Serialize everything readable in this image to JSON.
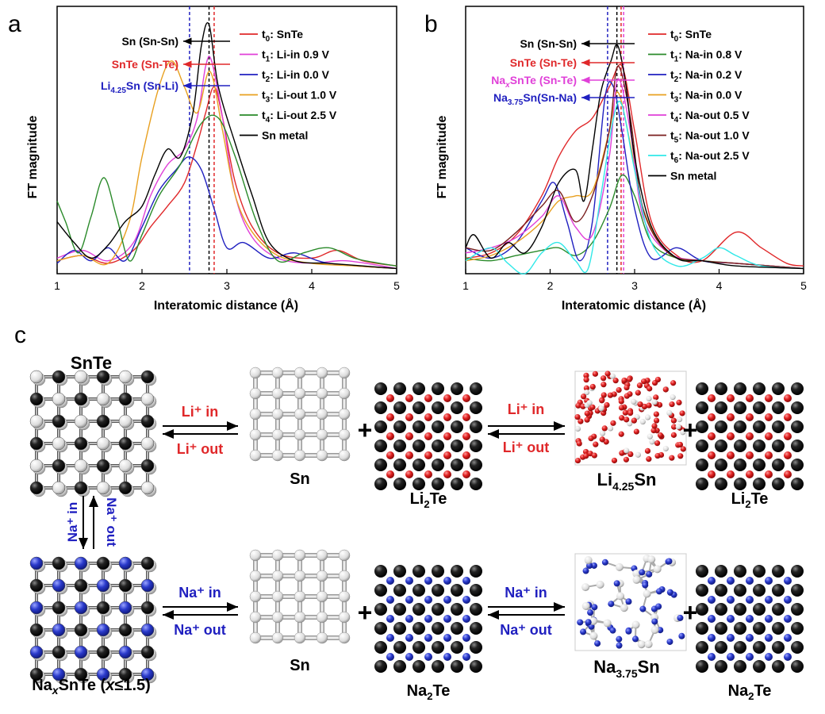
{
  "panel_labels": {
    "a": "a",
    "b": "b",
    "c": "c"
  },
  "colors": {
    "red": "#e0282a",
    "magenta": "#e040d8",
    "blue": "#2020c0",
    "orange": "#e8a020",
    "green": "#2a8a2a",
    "black": "#000000",
    "brown": "#7a1f1f",
    "cyan": "#30e8e8",
    "na_atom": "#2a3acb",
    "li_atom": "#e02020"
  },
  "chart_data": [
    {
      "type": "line",
      "xlabel": "Interatomic distance (Å)",
      "ylabel": "FT magnitude",
      "xlim": [
        1,
        5
      ],
      "xticks": [
        1,
        2,
        3,
        4,
        5
      ],
      "ylim": [
        0,
        1
      ],
      "ref_lines": [
        {
          "x": 2.56,
          "color": "#2020c0"
        },
        {
          "x": 2.79,
          "color": "#000000"
        },
        {
          "x": 2.85,
          "color": "#e0282a"
        }
      ],
      "annotations": [
        {
          "text": "Sn (Sn-Sn)",
          "color": "#000000"
        },
        {
          "text": "SnTe (Sn-Te)",
          "color": "#e0282a"
        },
        {
          "text": "Li4.25Sn (Sn-Li)",
          "main": "Li",
          "sub": "4.25",
          "rest": "Sn (Sn-Li)",
          "color": "#2020c0"
        }
      ],
      "legend": [
        {
          "t": "t",
          "sub": "0",
          "rest": ": SnTe",
          "color": "#e0282a"
        },
        {
          "t": "t",
          "sub": "1",
          "rest": ": Li-in 0.9 V",
          "color": "#e040d8"
        },
        {
          "t": "t",
          "sub": "2",
          "rest": ": Li-in 0.0 V",
          "color": "#2020c0"
        },
        {
          "t": "t",
          "sub": "3",
          "rest": ": Li-out 1.0 V",
          "color": "#e8a020"
        },
        {
          "t": "t",
          "sub": "4",
          "rest": ": Li-out 2.5 V",
          "color": "#2a8a2a"
        },
        {
          "t": "",
          "sub": "",
          "rest": "Sn metal",
          "color": "#000000"
        }
      ],
      "series": [
        {
          "color": "#e0282a",
          "x": [
            1,
            1.3,
            1.6,
            1.9,
            2.1,
            2.3,
            2.5,
            2.65,
            2.75,
            2.85,
            2.95,
            3.1,
            3.3,
            3.6,
            4.0,
            4.3,
            4.6,
            5.0
          ],
          "y": [
            0.05,
            0.07,
            0.04,
            0.09,
            0.18,
            0.26,
            0.35,
            0.5,
            0.62,
            0.72,
            0.6,
            0.35,
            0.18,
            0.08,
            0.06,
            0.09,
            0.05,
            0.03
          ]
        },
        {
          "color": "#e040d8",
          "x": [
            1,
            1.3,
            1.6,
            1.9,
            2.1,
            2.3,
            2.5,
            2.65,
            2.75,
            2.82,
            2.95,
            3.1,
            3.3,
            3.6,
            4.0,
            4.4,
            5.0
          ],
          "y": [
            0.06,
            0.09,
            0.05,
            0.12,
            0.3,
            0.42,
            0.48,
            0.6,
            0.8,
            0.82,
            0.6,
            0.3,
            0.14,
            0.06,
            0.04,
            0.05,
            0.02
          ]
        },
        {
          "color": "#2020c0",
          "x": [
            1,
            1.2,
            1.4,
            1.6,
            1.8,
            2.0,
            2.2,
            2.4,
            2.55,
            2.7,
            2.85,
            3.0,
            3.2,
            3.5,
            3.8,
            4.2,
            5.0
          ],
          "y": [
            0.04,
            0.09,
            0.05,
            0.1,
            0.05,
            0.18,
            0.32,
            0.4,
            0.45,
            0.4,
            0.25,
            0.1,
            0.12,
            0.06,
            0.08,
            0.04,
            0.02
          ]
        },
        {
          "color": "#e8a020",
          "x": [
            1,
            1.3,
            1.6,
            1.85,
            2.0,
            2.2,
            2.35,
            2.5,
            2.65,
            2.8,
            2.95,
            3.1,
            3.3,
            3.6,
            4.0,
            4.5,
            5.0
          ],
          "y": [
            0.05,
            0.07,
            0.04,
            0.2,
            0.45,
            0.72,
            0.82,
            0.72,
            0.62,
            0.78,
            0.55,
            0.3,
            0.16,
            0.07,
            0.04,
            0.03,
            0.02
          ]
        },
        {
          "color": "#2a8a2a",
          "x": [
            1,
            1.1,
            1.25,
            1.4,
            1.55,
            1.7,
            1.85,
            2.0,
            2.2,
            2.45,
            2.7,
            2.9,
            3.1,
            3.35,
            3.6,
            3.9,
            4.2,
            4.5,
            4.8,
            5.0
          ],
          "y": [
            0.28,
            0.2,
            0.08,
            0.22,
            0.37,
            0.22,
            0.05,
            0.15,
            0.3,
            0.42,
            0.58,
            0.6,
            0.45,
            0.2,
            0.05,
            0.08,
            0.1,
            0.06,
            0.04,
            0.03
          ]
        },
        {
          "color": "#000000",
          "x": [
            1,
            1.2,
            1.4,
            1.6,
            1.8,
            2.0,
            2.15,
            2.3,
            2.45,
            2.6,
            2.7,
            2.79,
            2.9,
            3.1,
            3.3,
            3.5,
            3.8,
            4.2,
            4.6,
            5.0
          ],
          "y": [
            0.2,
            0.12,
            0.06,
            0.11,
            0.2,
            0.26,
            0.38,
            0.48,
            0.45,
            0.62,
            0.88,
            0.96,
            0.72,
            0.5,
            0.3,
            0.12,
            0.05,
            0.04,
            0.03,
            0.02
          ]
        }
      ]
    },
    {
      "type": "line",
      "xlabel": "Interatomic distance (Å)",
      "ylabel": "FT magnitude",
      "xlim": [
        1,
        5
      ],
      "xticks": [
        1,
        2,
        3,
        4,
        5
      ],
      "ylim": [
        0,
        1
      ],
      "ref_lines": [
        {
          "x": 2.68,
          "color": "#2020c0"
        },
        {
          "x": 2.79,
          "color": "#000000"
        },
        {
          "x": 2.84,
          "color": "#e0282a"
        },
        {
          "x": 2.87,
          "color": "#e040d8"
        }
      ],
      "annotations": [
        {
          "text": "Sn (Sn-Sn)",
          "color": "#000000"
        },
        {
          "text": "SnTe (Sn-Te)",
          "color": "#e0282a"
        },
        {
          "text": "NaxSnTe (Sn-Te)",
          "main": "Na",
          "sub": "x",
          "rest": "SnTe (Sn-Te)",
          "color": "#e040d8"
        },
        {
          "text": "Na3.75Sn(Sn-Na)",
          "main": "Na",
          "sub": "3.75",
          "rest": "Sn(Sn-Na)",
          "color": "#2020c0"
        }
      ],
      "legend": [
        {
          "t": "t",
          "sub": "0",
          "rest": ": SnTe",
          "color": "#e0282a"
        },
        {
          "t": "t",
          "sub": "1",
          "rest": ": Na-in 0.8 V",
          "color": "#2a8a2a"
        },
        {
          "t": "t",
          "sub": "2",
          "rest": ": Na-in 0.2 V",
          "color": "#2020c0"
        },
        {
          "t": "t",
          "sub": "3",
          "rest": ": Na-in 0.0 V",
          "color": "#e8a020"
        },
        {
          "t": "t",
          "sub": "4",
          "rest": ": Na-out 0.5 V",
          "color": "#e040d8"
        },
        {
          "t": "t",
          "sub": "5",
          "rest": ": Na-out 1.0 V",
          "color": "#7a1f1f"
        },
        {
          "t": "t",
          "sub": "6",
          "rest": ": Na-out 2.5 V",
          "color": "#30e8e8"
        },
        {
          "t": "",
          "sub": "",
          "rest": "Sn metal",
          "color": "#000000"
        }
      ],
      "series": [
        {
          "color": "#e0282a",
          "x": [
            1,
            1.3,
            1.6,
            1.9,
            2.1,
            2.3,
            2.5,
            2.7,
            2.85,
            3.0,
            3.2,
            3.5,
            3.8,
            4.2,
            4.5,
            4.8,
            5.0
          ],
          "y": [
            0.06,
            0.08,
            0.15,
            0.3,
            0.45,
            0.55,
            0.6,
            0.72,
            0.8,
            0.55,
            0.2,
            0.07,
            0.05,
            0.16,
            0.1,
            0.04,
            0.03
          ]
        },
        {
          "color": "#2a8a2a",
          "x": [
            1,
            1.3,
            1.6,
            1.9,
            2.1,
            2.3,
            2.5,
            2.7,
            2.85,
            3.0,
            3.2,
            3.5,
            3.8,
            4.2,
            4.6,
            5.0
          ],
          "y": [
            0.06,
            0.05,
            0.07,
            0.09,
            0.1,
            0.07,
            0.12,
            0.25,
            0.38,
            0.3,
            0.12,
            0.06,
            0.05,
            0.04,
            0.03,
            0.02
          ]
        },
        {
          "color": "#2020c0",
          "x": [
            1,
            1.3,
            1.6,
            1.9,
            2.05,
            2.2,
            2.35,
            2.5,
            2.65,
            2.75,
            2.85,
            3.0,
            3.2,
            3.5,
            3.8,
            4.2,
            5.0
          ],
          "y": [
            0.1,
            0.06,
            0.12,
            0.28,
            0.35,
            0.2,
            0.05,
            0.2,
            0.68,
            0.72,
            0.55,
            0.25,
            0.06,
            0.1,
            0.05,
            0.04,
            0.02
          ]
        },
        {
          "color": "#e8a020",
          "x": [
            1,
            1.3,
            1.6,
            1.9,
            2.1,
            2.3,
            2.5,
            2.7,
            2.8,
            2.95,
            3.1,
            3.4,
            3.8,
            4.2,
            5.0
          ],
          "y": [
            0.05,
            0.07,
            0.12,
            0.2,
            0.28,
            0.3,
            0.32,
            0.55,
            0.7,
            0.5,
            0.25,
            0.08,
            0.05,
            0.04,
            0.02
          ]
        },
        {
          "color": "#e040d8",
          "x": [
            1,
            1.3,
            1.6,
            1.9,
            2.1,
            2.3,
            2.5,
            2.7,
            2.8,
            2.95,
            3.1,
            3.4,
            3.8,
            4.2,
            5.0
          ],
          "y": [
            0.08,
            0.1,
            0.14,
            0.22,
            0.3,
            0.18,
            0.15,
            0.45,
            0.75,
            0.55,
            0.22,
            0.08,
            0.05,
            0.04,
            0.02
          ]
        },
        {
          "color": "#7a1f1f",
          "x": [
            1,
            1.3,
            1.6,
            1.9,
            2.1,
            2.3,
            2.5,
            2.7,
            2.8,
            2.95,
            3.1,
            3.4,
            3.8,
            4.2,
            5.0
          ],
          "y": [
            0.1,
            0.09,
            0.16,
            0.26,
            0.32,
            0.2,
            0.3,
            0.55,
            0.8,
            0.6,
            0.25,
            0.08,
            0.05,
            0.04,
            0.02
          ]
        },
        {
          "color": "#30e8e8",
          "x": [
            1,
            1.3,
            1.5,
            1.7,
            1.9,
            2.1,
            2.3,
            2.45,
            2.6,
            2.75,
            2.85,
            3.0,
            3.2,
            3.5,
            3.8,
            4.0,
            4.2,
            4.5,
            5.0
          ],
          "y": [
            0.05,
            0.1,
            0.04,
            0.0,
            0.08,
            0.12,
            0.05,
            0.02,
            0.3,
            0.6,
            0.65,
            0.4,
            0.12,
            0.03,
            0.06,
            0.1,
            0.07,
            0.03,
            0.02
          ]
        },
        {
          "color": "#000000",
          "x": [
            1,
            1.1,
            1.3,
            1.5,
            1.7,
            1.9,
            2.1,
            2.3,
            2.4,
            2.5,
            2.6,
            2.72,
            2.8,
            2.9,
            3.0,
            3.2,
            3.5,
            3.8,
            4.2,
            5.0
          ],
          "y": [
            0.1,
            0.15,
            0.06,
            0.12,
            0.08,
            0.18,
            0.35,
            0.4,
            0.28,
            0.48,
            0.7,
            0.82,
            0.88,
            0.72,
            0.45,
            0.18,
            0.06,
            0.05,
            0.03,
            0.02
          ]
        }
      ]
    }
  ],
  "panel_c": {
    "labels": {
      "snte": "SnTe",
      "sn_top": "Sn",
      "sn_bottom": "Sn",
      "li2te_1": {
        "main": "Li",
        "sub": "2",
        "rest": "Te"
      },
      "li2te_2": {
        "main": "Li",
        "sub": "2",
        "rest": "Te"
      },
      "li425sn": {
        "main": "Li",
        "sub": "4.25",
        "rest": "Sn"
      },
      "naxsnte": {
        "main": "Na",
        "sub": "x",
        "rest": "SnTe (",
        "x": "x",
        "tail": "≤1.5)"
      },
      "na2te_1": {
        "main": "Na",
        "sub": "2",
        "rest": "Te"
      },
      "na2te_2": {
        "main": "Na",
        "sub": "2",
        "rest": "Te"
      },
      "na375sn": {
        "main": "Na",
        "sub": "3.75",
        "rest": "Sn"
      }
    },
    "arrows": {
      "li_in": "Li⁺ in",
      "li_out": "Li⁺ out",
      "na_in": "Na⁺ in",
      "na_out": "Na⁺ out",
      "plus": "+"
    }
  }
}
